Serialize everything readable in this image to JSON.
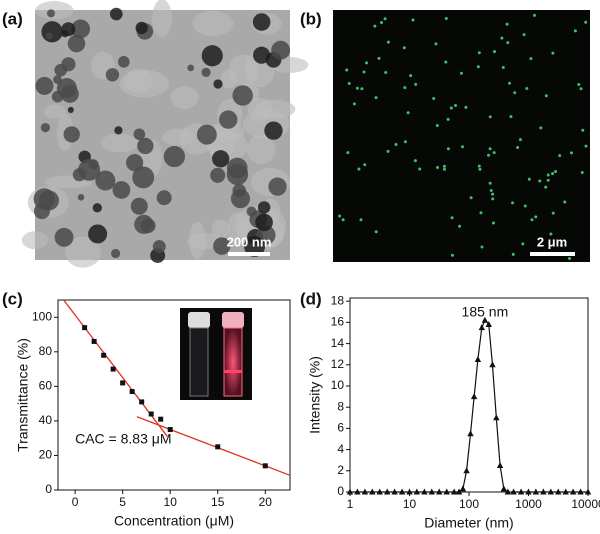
{
  "panels": {
    "a": {
      "label": "(a)",
      "scale_bar": "200 nm"
    },
    "b": {
      "label": "(b)",
      "scale_bar": "2 μm"
    }
  },
  "chart_data": [
    {
      "type": "scatter",
      "panel_label": "(c)",
      "x_label": "Concentration (μM)",
      "y_label": "Transmittance (%)",
      "x": [
        1,
        2,
        3,
        4,
        5,
        6,
        7,
        8,
        9,
        10,
        15,
        20
      ],
      "values": [
        94,
        86,
        78,
        70,
        62,
        57,
        51,
        44,
        41,
        35,
        25,
        14
      ],
      "color": "#111111",
      "fits": [
        {
          "x": [
            -1.2,
            9.7
          ],
          "values": [
            110,
            31
          ]
        },
        {
          "x": [
            6.5,
            22.6
          ],
          "values": [
            42.4,
            8.5
          ]
        }
      ],
      "fit_color": "#e0301e",
      "annotation": {
        "text": "CAC = 8.83 μM",
        "x": 0,
        "y": 29
      },
      "xlim": [
        -1.8,
        22.6
      ],
      "ylim": [
        0,
        110
      ],
      "xticks": [
        0,
        5,
        10,
        15,
        20
      ],
      "yticks": [
        0,
        20,
        40,
        60,
        80,
        100
      ]
    },
    {
      "type": "line",
      "panel_label": "(d)",
      "x_label": "Diameter (nm)",
      "y_label": "Intensity (%)",
      "x": [
        1,
        1.33,
        1.78,
        2.37,
        3.16,
        4.22,
        5.62,
        7.5,
        10,
        13.3,
        17.8,
        23.7,
        31.6,
        42.2,
        56.2,
        68,
        79,
        91,
        106,
        122,
        141,
        164,
        185,
        215,
        248,
        288,
        333,
        385,
        450,
        562,
        750,
        1000,
        1330,
        1780,
        2370,
        3160,
        4220,
        5620,
        7500,
        10000
      ],
      "values": [
        0,
        0,
        0,
        0,
        0,
        0,
        0,
        0,
        0,
        0,
        0,
        0,
        0,
        0,
        0,
        0,
        0.3,
        2,
        5.5,
        9,
        12.5,
        15.5,
        16.2,
        15.8,
        12,
        7,
        2.5,
        0.3,
        0,
        0,
        0,
        0,
        0,
        0,
        0,
        0,
        0,
        0,
        0,
        0
      ],
      "color": "#111111",
      "log_x": true,
      "annotation": {
        "text": "185 nm",
        "x": 185,
        "y": 16.9
      },
      "xlim": [
        1,
        10000
      ],
      "ylim": [
        0,
        18.3
      ],
      "xticks": [
        1,
        10,
        100,
        1000,
        10000
      ],
      "yticks": [
        0,
        2,
        4,
        6,
        8,
        10,
        12,
        14,
        16,
        18
      ]
    }
  ]
}
